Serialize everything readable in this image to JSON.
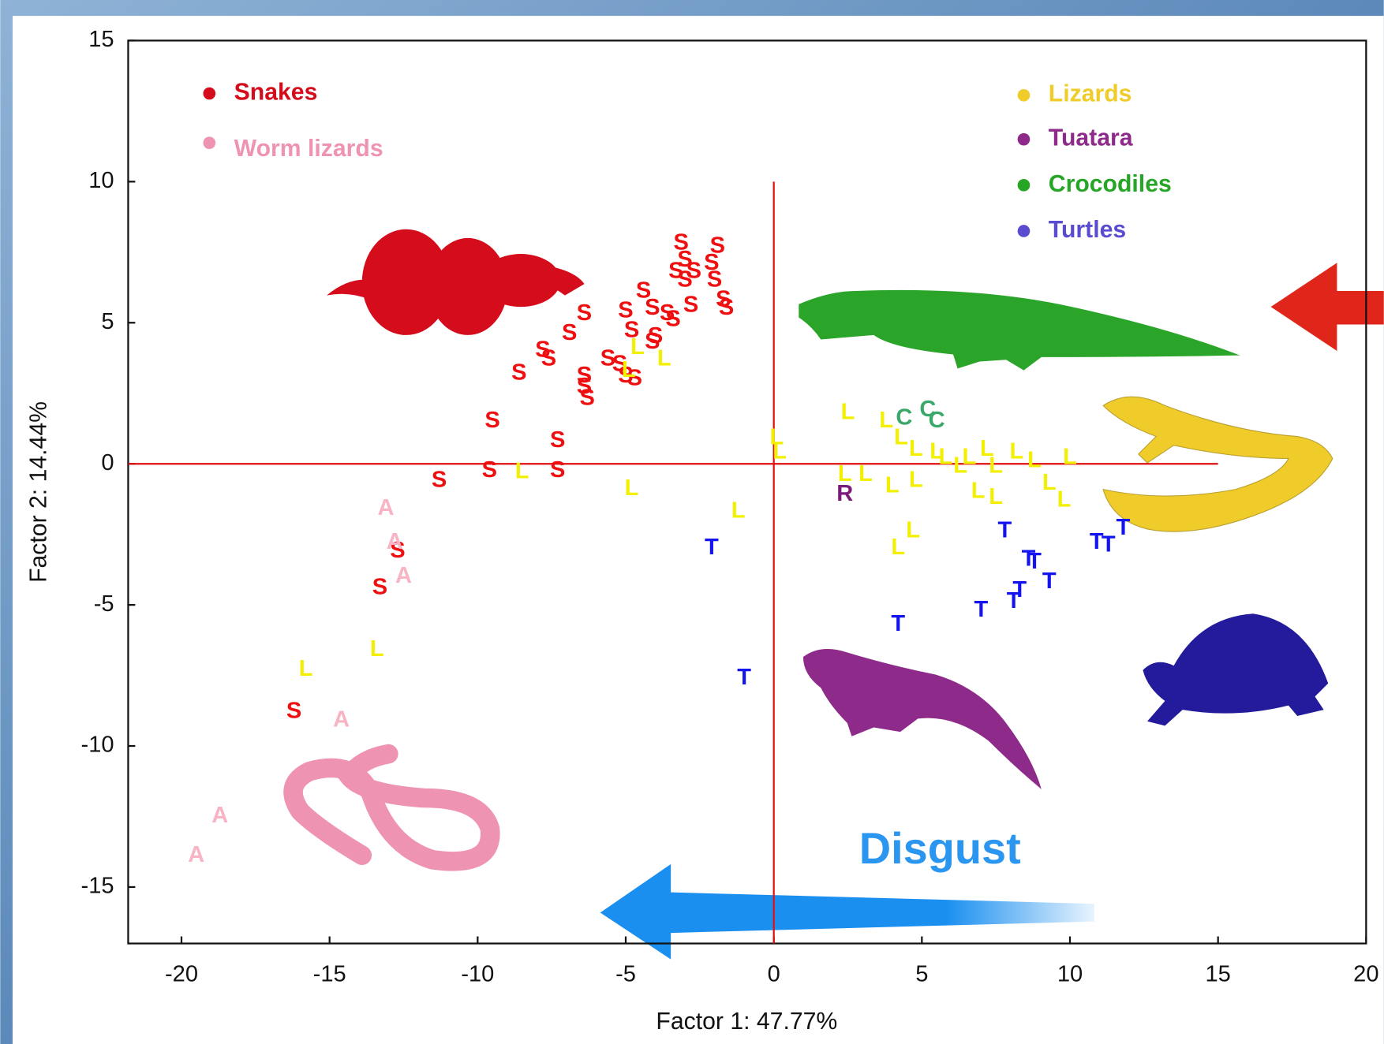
{
  "chart_data": {
    "type": "scatter",
    "xlabel": "Factor 1: 47.77%",
    "ylabel": "Factor 2: 14.44%",
    "annotation": "Disgust",
    "xlim": [
      -21.8,
      20
    ],
    "ylim": [
      -17,
      15
    ],
    "xticks": [
      -20,
      -15,
      -10,
      -5,
      0,
      5,
      10,
      15,
      20
    ],
    "yticks": [
      -15,
      -10,
      -5,
      0,
      5,
      10,
      15
    ],
    "series": [
      {
        "name": "Snakes",
        "marker": "S",
        "color": "#d40c1c",
        "marker_color": "#ee1010",
        "x": [
          -3.13,
          -1.9,
          -3.0,
          -2.1,
          -3.3,
          -2.7,
          -3.0,
          -2.0,
          -1.7,
          -1.6,
          -2.8,
          -4.4,
          -5.0,
          -4.1,
          -3.6,
          -3.4,
          -4.8,
          -4.0,
          -4.1,
          -6.4,
          -6.9,
          -7.8,
          -7.6,
          -8.6,
          -5.6,
          -5.2,
          -5.0,
          -4.7,
          -6.4,
          -6.4,
          -6.3,
          -9.5,
          -7.3,
          -9.6,
          -7.3,
          -11.3,
          -12.7,
          -13.3,
          -16.2
        ],
        "y": [
          7.8,
          7.7,
          7.2,
          7.1,
          6.8,
          6.8,
          6.5,
          6.5,
          5.8,
          5.5,
          5.6,
          6.1,
          5.4,
          5.5,
          5.3,
          5.1,
          4.7,
          4.5,
          4.3,
          5.3,
          4.6,
          4.0,
          3.7,
          3.2,
          3.7,
          3.5,
          3.1,
          3.0,
          3.1,
          2.7,
          2.3,
          1.5,
          0.8,
          -0.25,
          -0.25,
          -0.6,
          -3.1,
          -4.4,
          -8.8
        ]
      },
      {
        "name": "Worm lizards",
        "marker": "A",
        "color": "#ef93b2",
        "marker_color": "#f8b4c4",
        "x": [
          -13.1,
          -12.8,
          -12.5,
          -14.6,
          -18.7,
          -19.5
        ],
        "y": [
          -1.6,
          -2.8,
          -4.0,
          -9.1,
          -12.5,
          -13.9
        ]
      },
      {
        "name": "Lizards",
        "marker": "L",
        "color": "#f0cc2a",
        "marker_color": "#f2f000",
        "x": [
          0.1,
          0.2,
          2.5,
          3.8,
          4.3,
          4.8,
          5.5,
          5.8,
          6.3,
          6.6,
          7.2,
          7.5,
          8.2,
          8.8,
          9.3,
          9.8,
          10.0,
          6.9,
          7.5,
          2.4,
          3.1,
          4.0,
          4.8,
          4.7,
          4.2,
          -1.2,
          -4.8,
          -8.5,
          -4.6,
          -3.7,
          -4.9,
          -13.4,
          -15.8
        ],
        "y": [
          0.9,
          0.4,
          1.8,
          1.5,
          0.9,
          0.5,
          0.4,
          0.2,
          -0.1,
          0.2,
          0.5,
          -0.1,
          0.4,
          0.1,
          -0.7,
          -1.3,
          0.2,
          -1.0,
          -1.2,
          -0.4,
          -0.4,
          -0.8,
          -0.6,
          -2.4,
          -3.0,
          -1.7,
          -0.9,
          -0.3,
          4.1,
          3.7,
          3.3,
          -6.6,
          -7.3
        ]
      },
      {
        "name": "Tuatara",
        "marker": "R",
        "color": "#8e2a8a",
        "marker_color": "#7a1a7a",
        "x": [
          2.4
        ],
        "y": [
          -1.1
        ]
      },
      {
        "name": "Crocodiles",
        "marker": "C",
        "color": "#26a526",
        "marker_color": "#3aa86a",
        "x": [
          4.4,
          5.2,
          5.5
        ],
        "y": [
          1.6,
          1.9,
          1.5
        ]
      },
      {
        "name": "Turtles",
        "marker": "T",
        "color": "#5a4cd0",
        "marker_color": "#1414f0",
        "x": [
          -2.1,
          -1.0,
          4.2,
          7.0,
          8.1,
          8.3,
          7.8,
          8.6,
          8.8,
          9.3,
          10.9,
          11.3,
          11.8
        ],
        "y": [
          -3.0,
          -7.6,
          -5.7,
          -5.2,
          -4.9,
          -4.5,
          -2.4,
          -3.4,
          -3.5,
          -4.2,
          -2.8,
          -2.9,
          -2.3
        ]
      }
    ]
  }
}
